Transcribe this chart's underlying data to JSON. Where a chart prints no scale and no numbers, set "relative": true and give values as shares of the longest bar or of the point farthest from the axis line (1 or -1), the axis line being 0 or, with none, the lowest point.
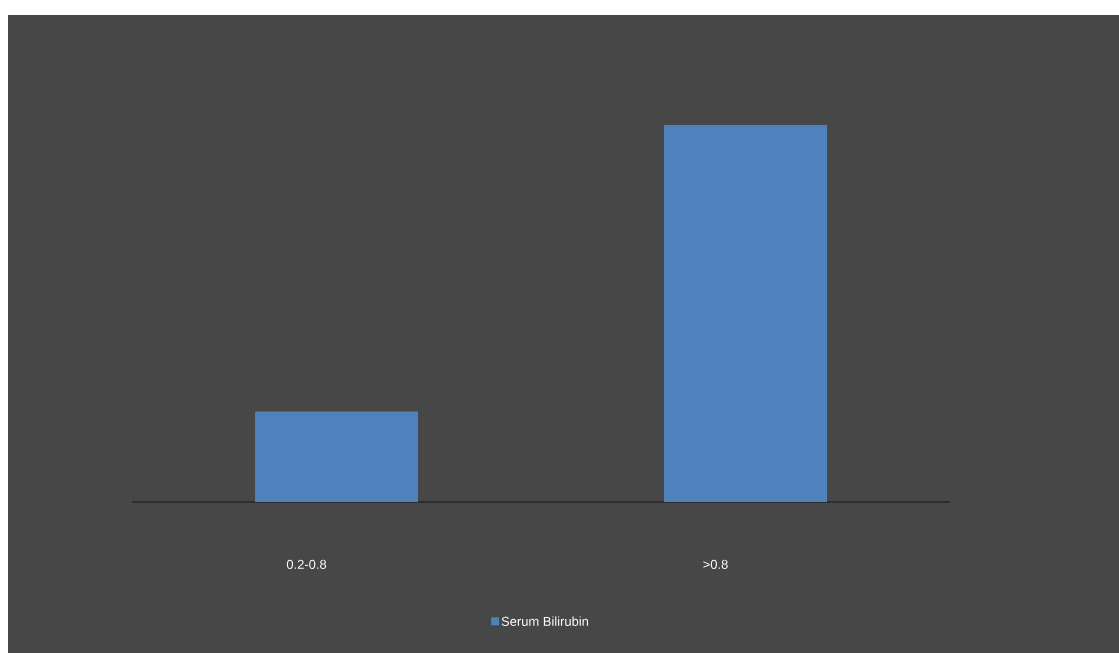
{
  "chart_data": {
    "type": "bar",
    "relative": true,
    "categories": [
      "0.2-0.8",
      ">0.8"
    ],
    "series": [
      {
        "name": "Serum Bilirubin",
        "color": "#4f81bd",
        "values": [
          0.24,
          1
        ]
      }
    ],
    "legend": "bottom"
  }
}
